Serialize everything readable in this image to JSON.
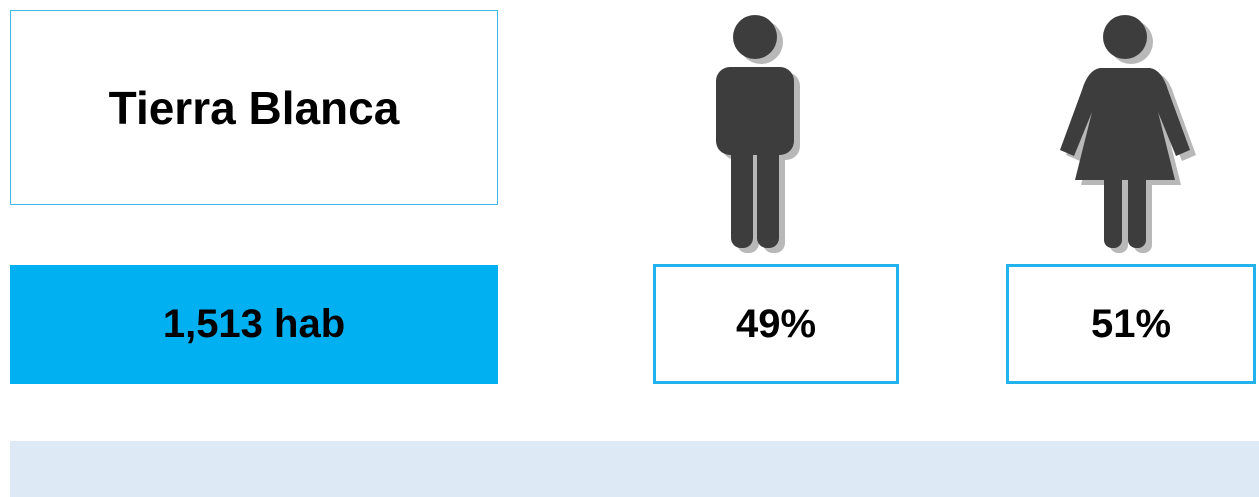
{
  "title": "Tierra Blanca",
  "population": "1,513 hab",
  "male": {
    "percent": "49%"
  },
  "female": {
    "percent": "51%"
  }
}
